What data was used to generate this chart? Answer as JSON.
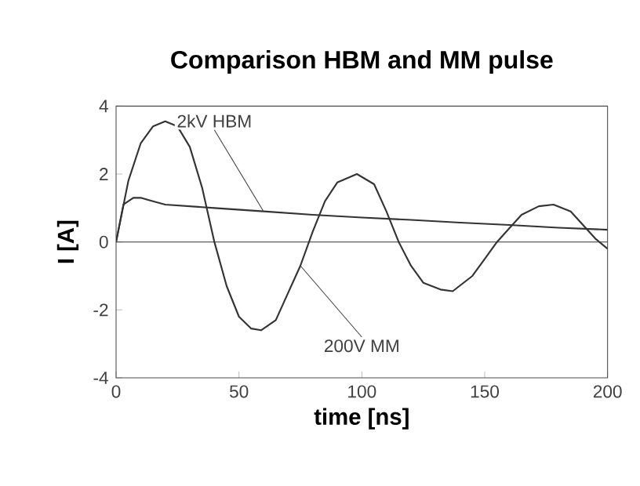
{
  "chart_data": {
    "type": "line",
    "title": "Comparison HBM and MM pulse",
    "xlabel": "time [ns]",
    "ylabel": "I  [A]",
    "xlim": [
      0,
      200
    ],
    "ylim": [
      -4,
      4
    ],
    "xticks": [
      0,
      50,
      100,
      150,
      200
    ],
    "yticks": [
      -4,
      -2,
      0,
      2,
      4
    ],
    "grid": false,
    "legend": false,
    "marker": "none",
    "line_style": "solid",
    "ref_lines": [
      {
        "axis": "y",
        "value": 0,
        "color": "#333333"
      }
    ],
    "series": [
      {
        "name": "200V MM",
        "color": "#333333",
        "x": [
          0,
          5,
          10,
          15,
          20,
          25,
          30,
          35,
          40,
          45,
          50,
          55,
          59,
          65,
          70,
          75,
          80,
          85,
          90,
          98,
          105,
          110,
          115,
          120,
          125,
          132,
          137,
          145,
          150,
          155,
          160,
          165,
          172,
          178,
          185,
          190,
          195,
          200
        ],
        "values": [
          0,
          1.8,
          2.9,
          3.4,
          3.55,
          3.4,
          2.8,
          1.6,
          0,
          -1.3,
          -2.2,
          -2.55,
          -2.6,
          -2.3,
          -1.5,
          -0.7,
          0.3,
          1.2,
          1.75,
          2.0,
          1.7,
          0.9,
          0,
          -0.7,
          -1.2,
          -1.4,
          -1.45,
          -1.0,
          -0.5,
          0,
          0.4,
          0.8,
          1.05,
          1.1,
          0.9,
          0.5,
          0.1,
          -0.2
        ]
      },
      {
        "name": "2kV HBM",
        "color": "#333333",
        "x": [
          0,
          3,
          7,
          10,
          15,
          20,
          40,
          60,
          80,
          100,
          120,
          140,
          160,
          180,
          200
        ],
        "values": [
          0,
          1.1,
          1.3,
          1.3,
          1.2,
          1.1,
          1.0,
          0.9,
          0.8,
          0.72,
          0.65,
          0.57,
          0.5,
          0.42,
          0.36
        ]
      }
    ]
  }
}
